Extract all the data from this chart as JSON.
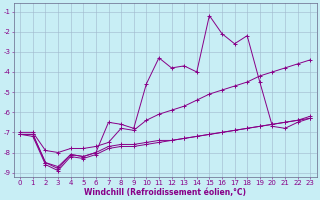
{
  "xlabel": "Windchill (Refroidissement éolien,°C)",
  "xlim": [
    -0.5,
    23.5
  ],
  "ylim": [
    -9.2,
    -0.6
  ],
  "xticks": [
    0,
    1,
    2,
    3,
    4,
    5,
    6,
    7,
    8,
    9,
    10,
    11,
    12,
    13,
    14,
    15,
    16,
    17,
    18,
    19,
    20,
    21,
    22,
    23
  ],
  "yticks": [
    -1,
    -2,
    -3,
    -4,
    -5,
    -6,
    -7,
    -8,
    -9
  ],
  "bg_color": "#c8eef5",
  "line_color": "#880088",
  "grid_color": "#a0b8cc",
  "lines": [
    {
      "x": [
        0,
        1,
        2,
        3,
        4,
        5,
        6,
        7,
        8,
        9,
        10,
        11,
        12,
        13,
        14,
        15,
        16,
        17,
        18,
        19,
        20,
        21,
        22,
        23
      ],
      "y": [
        -7.1,
        -7.1,
        -8.5,
        -8.8,
        -8.1,
        -8.2,
        -8.0,
        -6.5,
        -6.6,
        -6.8,
        -4.6,
        -3.3,
        -3.8,
        -3.7,
        -4.0,
        -1.2,
        -2.1,
        -2.6,
        -2.2,
        -4.5,
        -6.7,
        -6.8,
        -6.5,
        -6.3
      ]
    },
    {
      "x": [
        0,
        1,
        2,
        3,
        4,
        5,
        6,
        7,
        8,
        9,
        10,
        11,
        12,
        13,
        14,
        15,
        16,
        17,
        18,
        19,
        20,
        21,
        22,
        23
      ],
      "y": [
        -7.0,
        -7.0,
        -7.9,
        -8.0,
        -7.8,
        -7.8,
        -7.7,
        -7.5,
        -6.8,
        -6.9,
        -6.4,
        -6.1,
        -5.9,
        -5.7,
        -5.4,
        -5.1,
        -4.9,
        -4.7,
        -4.5,
        -4.2,
        -4.0,
        -3.8,
        -3.6,
        -3.4
      ]
    },
    {
      "x": [
        0,
        1,
        2,
        3,
        4,
        5,
        6,
        7,
        8,
        9,
        10,
        11,
        12,
        13,
        14,
        15,
        16,
        17,
        18,
        19,
        20,
        21,
        22,
        23
      ],
      "y": [
        -7.1,
        -7.1,
        -8.5,
        -8.7,
        -8.1,
        -8.2,
        -8.0,
        -7.7,
        -7.6,
        -7.6,
        -7.5,
        -7.4,
        -7.4,
        -7.3,
        -7.2,
        -7.1,
        -7.0,
        -6.9,
        -6.8,
        -6.7,
        -6.6,
        -6.5,
        -6.4,
        -6.3
      ]
    },
    {
      "x": [
        0,
        1,
        2,
        3,
        4,
        5,
        6,
        7,
        8,
        9,
        10,
        11,
        12,
        13,
        14,
        15,
        16,
        17,
        18,
        19,
        20,
        21,
        22,
        23
      ],
      "y": [
        -7.1,
        -7.2,
        -8.6,
        -8.9,
        -8.2,
        -8.3,
        -8.1,
        -7.8,
        -7.7,
        -7.7,
        -7.6,
        -7.5,
        -7.4,
        -7.3,
        -7.2,
        -7.1,
        -7.0,
        -6.9,
        -6.8,
        -6.7,
        -6.6,
        -6.5,
        -6.4,
        -6.2
      ]
    }
  ],
  "marker": "+",
  "markersize": 3,
  "linewidth": 0.7,
  "tick_fontsize": 5.0,
  "label_fontsize": 5.5,
  "markeredgewidth": 0.7
}
